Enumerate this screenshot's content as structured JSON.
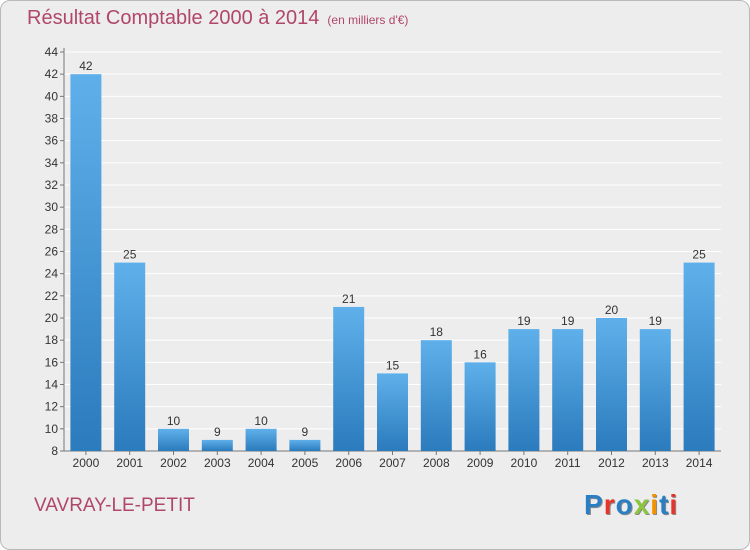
{
  "title": "Résultat Comptable 2000 à 2014",
  "subtitle": "(en milliers d'€)",
  "commune": "VAVRAY-LE-PETIT",
  "logo": {
    "text": "Proxiti",
    "colors": [
      "#2a7fc4",
      "#e8332a",
      "#2a7fc4",
      "#8cc63f",
      "#f39200",
      "#2a7fc4",
      "#e8332a"
    ]
  },
  "colors": {
    "bar_top": "#5fb0ea",
    "bar_bottom": "#2b7bbd",
    "title": "#b0476a",
    "grid": "#ffffff"
  },
  "chart_data": {
    "type": "bar",
    "title": "Résultat Comptable 2000 à 2014",
    "xlabel": "",
    "ylabel": "",
    "categories": [
      "2000",
      "2001",
      "2002",
      "2003",
      "2004",
      "2005",
      "2006",
      "2007",
      "2008",
      "2009",
      "2010",
      "2011",
      "2012",
      "2013",
      "2014"
    ],
    "values": [
      42,
      25,
      10,
      9,
      10,
      9,
      21,
      15,
      18,
      16,
      19,
      19,
      20,
      19,
      25
    ],
    "ylim": [
      8,
      44
    ],
    "yticks": [
      8,
      10,
      12,
      14,
      16,
      18,
      20,
      22,
      24,
      26,
      28,
      30,
      32,
      34,
      36,
      38,
      40,
      42,
      44
    ],
    "grid": true
  }
}
